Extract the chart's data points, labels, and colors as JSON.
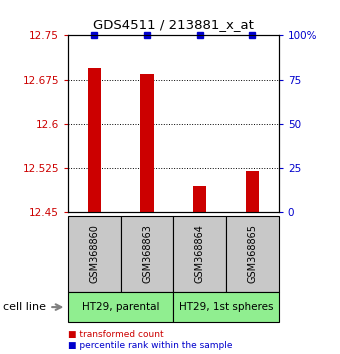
{
  "title": "GDS4511 / 213881_x_at",
  "samples": [
    "GSM368860",
    "GSM368863",
    "GSM368864",
    "GSM368865"
  ],
  "transformed_counts": [
    12.695,
    12.685,
    12.495,
    12.52
  ],
  "percentile_ranks": [
    100,
    100,
    100,
    100
  ],
  "ymin": 12.45,
  "ymax": 12.75,
  "yticks_left": [
    12.45,
    12.525,
    12.6,
    12.675,
    12.75
  ],
  "yticks_right": [
    0,
    25,
    50,
    75,
    100
  ],
  "ytick_labels_left": [
    "12.45",
    "12.525",
    "12.6",
    "12.675",
    "12.75"
  ],
  "ytick_labels_right": [
    "0",
    "25",
    "50",
    "75",
    "100%"
  ],
  "cell_lines": [
    "HT29, parental",
    "HT29, 1st spheres"
  ],
  "cell_line_groups": [
    [
      0,
      1
    ],
    [
      2,
      3
    ]
  ],
  "cell_line_colors": [
    "#90ee90",
    "#90ee90"
  ],
  "bar_color": "#cc0000",
  "percentile_color": "#0000cc",
  "sample_box_color": "#c8c8c8",
  "background_color": "#ffffff",
  "grid_color": "#000000",
  "bar_width": 0.25,
  "cell_line_label": "cell line"
}
